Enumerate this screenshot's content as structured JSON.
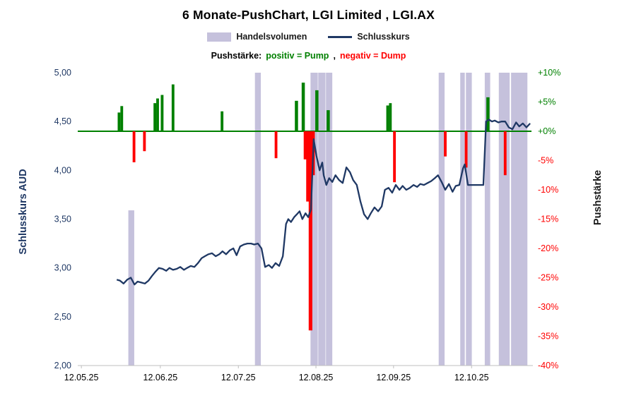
{
  "chart": {
    "title": "6 Monate-PushChart, LGI Limited , LGI.AX",
    "legend": {
      "volume_label": "Handelsvolumen",
      "close_label": "Schlusskurs",
      "push_label": "Pushstärke:",
      "pump_label": "positiv = Pump",
      "separator": ",",
      "dump_label": "negativ = Dump"
    },
    "y_left_title": "Schlusskurs AUD",
    "y_right_title": "Pushstärke"
  },
  "chart_data": {
    "type": "composite",
    "series_types": {
      "close": "line",
      "volume": "bar",
      "push": "bar"
    },
    "title": "6 Monate-PushChart, LGI Limited , LGI.AX",
    "grid": false,
    "legend_position": "top",
    "colors": {
      "line": "#1F3864",
      "volume": "#C5C1DC",
      "positive": "#008000",
      "negative": "#FF0000",
      "axis": "#BFBFBF"
    },
    "y_left": {
      "title": "Schlusskurs AUD",
      "min": 2,
      "max": 5,
      "ticks": [
        {
          "v": 5.0,
          "label": "5,00"
        },
        {
          "v": 4.5,
          "label": "4,50"
        },
        {
          "v": 4.0,
          "label": "4,00"
        },
        {
          "v": 3.5,
          "label": "3,50"
        },
        {
          "v": 3.0,
          "label": "3,00"
        },
        {
          "v": 2.5,
          "label": "2,50"
        },
        {
          "v": 2.0,
          "label": "2,00"
        }
      ]
    },
    "y_right": {
      "title": "Pushstärke",
      "min": -40,
      "max": 10,
      "zero_line": 0,
      "ticks": [
        {
          "v": 10,
          "label": "+10%"
        },
        {
          "v": 5,
          "label": "+5%"
        },
        {
          "v": 0,
          "label": "+0%"
        },
        {
          "v": -5,
          "label": "-5%"
        },
        {
          "v": -10,
          "label": "-10%"
        },
        {
          "v": -15,
          "label": "-15%"
        },
        {
          "v": -20,
          "label": "-20%"
        },
        {
          "v": -25,
          "label": "-25%"
        },
        {
          "v": -30,
          "label": "-30%"
        },
        {
          "v": -35,
          "label": "-35%"
        },
        {
          "v": -40,
          "label": "-40%"
        }
      ]
    },
    "x_ticks": [
      {
        "x": 0.008,
        "label": "12.05.25"
      },
      {
        "x": 0.182,
        "label": "12.06.25"
      },
      {
        "x": 0.354,
        "label": "12.07.25"
      },
      {
        "x": 0.525,
        "label": "12.08.25"
      },
      {
        "x": 0.696,
        "label": "12.09.25"
      },
      {
        "x": 0.868,
        "label": "12.10.25"
      }
    ],
    "close": [
      [
        0.086,
        2.88
      ],
      [
        0.093,
        2.87
      ],
      [
        0.101,
        2.84
      ],
      [
        0.109,
        2.88
      ],
      [
        0.117,
        2.9
      ],
      [
        0.125,
        2.83
      ],
      [
        0.132,
        2.86
      ],
      [
        0.14,
        2.85
      ],
      [
        0.148,
        2.84
      ],
      [
        0.156,
        2.87
      ],
      [
        0.164,
        2.92
      ],
      [
        0.171,
        2.96
      ],
      [
        0.179,
        3.0
      ],
      [
        0.187,
        2.99
      ],
      [
        0.195,
        2.97
      ],
      [
        0.202,
        3.0
      ],
      [
        0.21,
        2.98
      ],
      [
        0.218,
        2.99
      ],
      [
        0.226,
        3.01
      ],
      [
        0.234,
        2.98
      ],
      [
        0.241,
        3.0
      ],
      [
        0.249,
        3.02
      ],
      [
        0.257,
        3.01
      ],
      [
        0.265,
        3.05
      ],
      [
        0.273,
        3.1
      ],
      [
        0.28,
        3.12
      ],
      [
        0.288,
        3.14
      ],
      [
        0.296,
        3.15
      ],
      [
        0.304,
        3.12
      ],
      [
        0.312,
        3.14
      ],
      [
        0.319,
        3.17
      ],
      [
        0.327,
        3.14
      ],
      [
        0.335,
        3.18
      ],
      [
        0.343,
        3.2
      ],
      [
        0.35,
        3.13
      ],
      [
        0.358,
        3.22
      ],
      [
        0.366,
        3.24
      ],
      [
        0.374,
        3.25
      ],
      [
        0.382,
        3.25
      ],
      [
        0.389,
        3.24
      ],
      [
        0.397,
        3.25
      ],
      [
        0.405,
        3.2
      ],
      [
        0.413,
        3.01
      ],
      [
        0.421,
        3.03
      ],
      [
        0.428,
        3.0
      ],
      [
        0.436,
        3.05
      ],
      [
        0.444,
        3.02
      ],
      [
        0.452,
        3.12
      ],
      [
        0.459,
        3.45
      ],
      [
        0.464,
        3.5
      ],
      [
        0.47,
        3.47
      ],
      [
        0.477,
        3.52
      ],
      [
        0.483,
        3.55
      ],
      [
        0.489,
        3.58
      ],
      [
        0.495,
        3.5
      ],
      [
        0.502,
        3.56
      ],
      [
        0.508,
        3.52
      ],
      [
        0.514,
        3.6
      ],
      [
        0.52,
        4.32
      ],
      [
        0.526,
        4.15
      ],
      [
        0.533,
        4.0
      ],
      [
        0.539,
        4.08
      ],
      [
        0.542,
        3.95
      ],
      [
        0.548,
        3.85
      ],
      [
        0.554,
        3.92
      ],
      [
        0.561,
        3.88
      ],
      [
        0.568,
        3.95
      ],
      [
        0.576,
        3.9
      ],
      [
        0.584,
        3.87
      ],
      [
        0.592,
        4.03
      ],
      [
        0.6,
        3.98
      ],
      [
        0.607,
        3.9
      ],
      [
        0.615,
        3.85
      ],
      [
        0.623,
        3.68
      ],
      [
        0.631,
        3.55
      ],
      [
        0.639,
        3.5
      ],
      [
        0.646,
        3.56
      ],
      [
        0.654,
        3.62
      ],
      [
        0.662,
        3.58
      ],
      [
        0.67,
        3.63
      ],
      [
        0.677,
        3.8
      ],
      [
        0.685,
        3.82
      ],
      [
        0.693,
        3.77
      ],
      [
        0.701,
        3.85
      ],
      [
        0.709,
        3.8
      ],
      [
        0.716,
        3.84
      ],
      [
        0.724,
        3.8
      ],
      [
        0.732,
        3.82
      ],
      [
        0.74,
        3.85
      ],
      [
        0.748,
        3.83
      ],
      [
        0.755,
        3.86
      ],
      [
        0.763,
        3.85
      ],
      [
        0.771,
        3.87
      ],
      [
        0.779,
        3.89
      ],
      [
        0.787,
        3.92
      ],
      [
        0.794,
        3.95
      ],
      [
        0.802,
        3.88
      ],
      [
        0.81,
        3.8
      ],
      [
        0.818,
        3.86
      ],
      [
        0.826,
        3.78
      ],
      [
        0.833,
        3.84
      ],
      [
        0.841,
        3.85
      ],
      [
        0.849,
        4.02
      ],
      [
        0.853,
        4.06
      ],
      [
        0.86,
        3.85
      ],
      [
        0.866,
        3.85
      ],
      [
        0.875,
        3.85
      ],
      [
        0.884,
        3.85
      ],
      [
        0.894,
        3.85
      ],
      [
        0.9,
        4.5
      ],
      [
        0.906,
        4.52
      ],
      [
        0.913,
        4.5
      ],
      [
        0.919,
        4.51
      ],
      [
        0.927,
        4.49
      ],
      [
        0.934,
        4.5
      ],
      [
        0.942,
        4.5
      ],
      [
        0.95,
        4.44
      ],
      [
        0.958,
        4.42
      ],
      [
        0.966,
        4.49
      ],
      [
        0.973,
        4.45
      ],
      [
        0.981,
        4.48
      ],
      [
        0.989,
        4.44
      ],
      [
        0.997,
        4.48
      ]
    ],
    "volume": [
      {
        "x": 0.118,
        "h": 0.53,
        "w": 0.013
      },
      {
        "x": 0.397,
        "h": 1.0,
        "w": 0.013
      },
      {
        "x": 0.521,
        "h": 1.0,
        "w": 0.016
      },
      {
        "x": 0.538,
        "h": 1.0,
        "w": 0.016
      },
      {
        "x": 0.554,
        "h": 1.0,
        "w": 0.014
      },
      {
        "x": 0.802,
        "h": 1.0,
        "w": 0.013
      },
      {
        "x": 0.848,
        "h": 1.0,
        "w": 0.01
      },
      {
        "x": 0.862,
        "h": 1.0,
        "w": 0.013
      },
      {
        "x": 0.903,
        "h": 1.0,
        "w": 0.012
      },
      {
        "x": 0.94,
        "h": 1.0,
        "w": 0.024
      },
      {
        "x": 0.962,
        "h": 1.0,
        "w": 0.014
      },
      {
        "x": 0.979,
        "h": 1.0,
        "w": 0.024
      }
    ],
    "push": [
      {
        "x": 0.091,
        "v": 3.2,
        "w": 0.006
      },
      {
        "x": 0.097,
        "v": 4.3,
        "w": 0.006
      },
      {
        "x": 0.124,
        "v": -5.3,
        "w": 0.006
      },
      {
        "x": 0.147,
        "v": -3.4,
        "w": 0.006
      },
      {
        "x": 0.17,
        "v": 4.8,
        "w": 0.006
      },
      {
        "x": 0.176,
        "v": 5.6,
        "w": 0.006
      },
      {
        "x": 0.186,
        "v": 6.2,
        "w": 0.006
      },
      {
        "x": 0.21,
        "v": 8.0,
        "w": 0.006
      },
      {
        "x": 0.318,
        "v": 3.4,
        "w": 0.006
      },
      {
        "x": 0.437,
        "v": -4.6,
        "w": 0.006
      },
      {
        "x": 0.482,
        "v": 5.2,
        "w": 0.007
      },
      {
        "x": 0.497,
        "v": 8.3,
        "w": 0.007
      },
      {
        "x": 0.501,
        "v": -4.8,
        "w": 0.006
      },
      {
        "x": 0.507,
        "v": -12.0,
        "w": 0.007
      },
      {
        "x": 0.513,
        "v": -34.0,
        "w": 0.008
      },
      {
        "x": 0.519,
        "v": -7.5,
        "w": 0.007
      },
      {
        "x": 0.527,
        "v": 7.0,
        "w": 0.007
      },
      {
        "x": 0.552,
        "v": 3.6,
        "w": 0.007
      },
      {
        "x": 0.683,
        "v": 4.4,
        "w": 0.006
      },
      {
        "x": 0.689,
        "v": 4.8,
        "w": 0.006
      },
      {
        "x": 0.698,
        "v": -8.7,
        "w": 0.006
      },
      {
        "x": 0.81,
        "v": -4.3,
        "w": 0.006
      },
      {
        "x": 0.856,
        "v": -6.2,
        "w": 0.006
      },
      {
        "x": 0.904,
        "v": 5.8,
        "w": 0.007
      },
      {
        "x": 0.942,
        "v": -7.5,
        "w": 0.006
      }
    ]
  }
}
